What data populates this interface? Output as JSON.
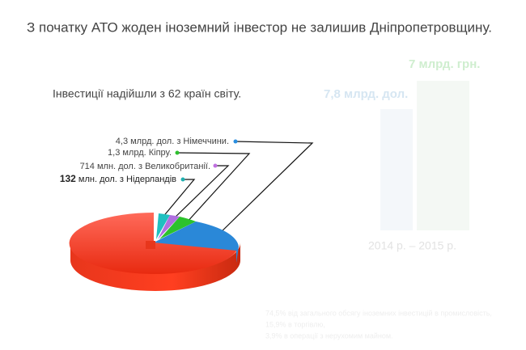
{
  "header": {
    "title": "З початку АТО жоден іноземний інвестор не залишив Дніпропетровщину."
  },
  "subtitle": "Інвестиції надійшли з 62 країн світу.",
  "labels": [
    {
      "text": "4,3 млрд. дол.  з Німеччини."
    },
    {
      "text": "1,3 млрд. Кіпру."
    },
    {
      "text": "714 млн. дол. з Великобританії."
    },
    {
      "number": "132",
      "text": "млн. дол. з Нідерландів"
    }
  ],
  "background": {
    "amount_uah": "7 млрд. грн.",
    "amount_usd": "7,8 млрд. дол.",
    "period": "2014 р. – 2015 р.",
    "notes": [
      "74,5% від загального обсягу іноземних інвестицій в промисловість,",
      "15,9% в торгівлю,",
      "3,9% в операції з нерухомим майном."
    ]
  }
}
